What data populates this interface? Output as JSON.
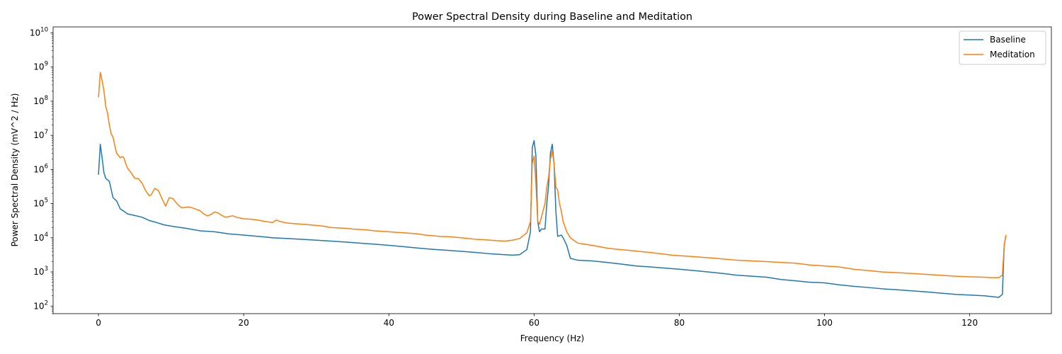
{
  "chart_data": {
    "type": "line",
    "title": "Power Spectral Density during Baseline and Meditation",
    "xlabel": "Frequency (Hz)",
    "ylabel": "Power Spectral Density (mV^2 / Hz)",
    "xlim": [
      -6.25,
      131.25
    ],
    "ylim": [
      60,
      15000000000
    ],
    "yscale": "log",
    "grid": false,
    "legend_position": "upper right",
    "x_ticks": [
      0,
      20,
      40,
      60,
      80,
      100,
      120
    ],
    "y_ticks": [
      100,
      1000,
      10000,
      100000,
      1000000,
      10000000,
      100000000,
      1000000000,
      10000000000
    ],
    "series": [
      {
        "name": "Baseline",
        "color": "#1f77b4",
        "points": [
          [
            0,
            700000
          ],
          [
            0.25,
            5500000
          ],
          [
            0.5,
            2200000
          ],
          [
            0.75,
            800000
          ],
          [
            1,
            550000
          ],
          [
            1.5,
            450000
          ],
          [
            2,
            150000
          ],
          [
            2.5,
            120000
          ],
          [
            3,
            70000
          ],
          [
            3.5,
            60000
          ],
          [
            4,
            50000
          ],
          [
            5,
            45000
          ],
          [
            6,
            40000
          ],
          [
            7,
            32000
          ],
          [
            8,
            28000
          ],
          [
            9,
            24000
          ],
          [
            10,
            22000
          ],
          [
            12,
            19000
          ],
          [
            14,
            16000
          ],
          [
            16,
            15000
          ],
          [
            18,
            13000
          ],
          [
            20,
            12000
          ],
          [
            22,
            11000
          ],
          [
            24,
            10000
          ],
          [
            26,
            9500
          ],
          [
            28,
            9000
          ],
          [
            30,
            8500
          ],
          [
            32,
            8000
          ],
          [
            34,
            7500
          ],
          [
            36,
            7000
          ],
          [
            38,
            6500
          ],
          [
            40,
            6000
          ],
          [
            42,
            5500
          ],
          [
            44,
            5000
          ],
          [
            46,
            4600
          ],
          [
            48,
            4300
          ],
          [
            50,
            4000
          ],
          [
            52,
            3700
          ],
          [
            54,
            3400
          ],
          [
            56,
            3200
          ],
          [
            57,
            3100
          ],
          [
            58,
            3200
          ],
          [
            59,
            4500
          ],
          [
            59.5,
            15000
          ],
          [
            59.75,
            4500000
          ],
          [
            60,
            7000000
          ],
          [
            60.25,
            2500000
          ],
          [
            60.5,
            30000
          ],
          [
            60.75,
            15000
          ],
          [
            61,
            18000
          ],
          [
            61.5,
            18000
          ],
          [
            61.75,
            100000
          ],
          [
            62,
            350000
          ],
          [
            62.25,
            3000000
          ],
          [
            62.5,
            5500000
          ],
          [
            62.75,
            1500000
          ],
          [
            63,
            60000
          ],
          [
            63.25,
            11000
          ],
          [
            63.75,
            12000
          ],
          [
            64,
            10000
          ],
          [
            64.5,
            6000
          ],
          [
            65,
            2500
          ],
          [
            66,
            2200
          ],
          [
            68,
            2100
          ],
          [
            70,
            1900
          ],
          [
            72,
            1700
          ],
          [
            74,
            1500
          ],
          [
            76,
            1400
          ],
          [
            78,
            1300
          ],
          [
            80,
            1200
          ],
          [
            82,
            1100
          ],
          [
            84,
            1000
          ],
          [
            86,
            900
          ],
          [
            88,
            800
          ],
          [
            90,
            750
          ],
          [
            92,
            700
          ],
          [
            94,
            600
          ],
          [
            96,
            550
          ],
          [
            98,
            500
          ],
          [
            100,
            480
          ],
          [
            102,
            420
          ],
          [
            104,
            380
          ],
          [
            106,
            350
          ],
          [
            108,
            320
          ],
          [
            110,
            300
          ],
          [
            112,
            280
          ],
          [
            114,
            260
          ],
          [
            116,
            240
          ],
          [
            118,
            220
          ],
          [
            120,
            210
          ],
          [
            122,
            200
          ],
          [
            123,
            190
          ],
          [
            124,
            180
          ],
          [
            124.5,
            220
          ],
          [
            124.75,
            6000
          ],
          [
            125,
            12000
          ]
        ]
      },
      {
        "name": "Meditation",
        "color": "#ff7f0e",
        "points": [
          [
            0,
            130000000
          ],
          [
            0.25,
            700000000
          ],
          [
            0.5,
            400000000
          ],
          [
            0.75,
            200000000
          ],
          [
            1,
            70000000
          ],
          [
            1.25,
            45000000
          ],
          [
            1.5,
            20000000
          ],
          [
            1.75,
            11000000
          ],
          [
            2,
            9000000
          ],
          [
            2.25,
            5000000
          ],
          [
            2.5,
            3000000
          ],
          [
            3,
            2200000
          ],
          [
            3.25,
            2400000
          ],
          [
            3.5,
            2200000
          ],
          [
            3.75,
            1500000
          ],
          [
            4,
            1100000
          ],
          [
            4.5,
            800000
          ],
          [
            5,
            550000
          ],
          [
            5.5,
            540000
          ],
          [
            6,
            400000
          ],
          [
            6.5,
            240000
          ],
          [
            7,
            170000
          ],
          [
            7.25,
            180000
          ],
          [
            7.75,
            280000
          ],
          [
            8.25,
            240000
          ],
          [
            8.75,
            140000
          ],
          [
            9.25,
            85000
          ],
          [
            9.75,
            150000
          ],
          [
            10.25,
            140000
          ],
          [
            11,
            90000
          ],
          [
            11.5,
            75000
          ],
          [
            12,
            78000
          ],
          [
            12.5,
            80000
          ],
          [
            13,
            74000
          ],
          [
            13.5,
            68000
          ],
          [
            14,
            62000
          ],
          [
            14.5,
            50000
          ],
          [
            15,
            44000
          ],
          [
            15.5,
            48000
          ],
          [
            16,
            57000
          ],
          [
            16.5,
            53000
          ],
          [
            17,
            45000
          ],
          [
            17.5,
            40000
          ],
          [
            18,
            42000
          ],
          [
            18.5,
            44000
          ],
          [
            19,
            40000
          ],
          [
            20,
            36000
          ],
          [
            21,
            35000
          ],
          [
            22,
            33000
          ],
          [
            23,
            30000
          ],
          [
            24,
            28000
          ],
          [
            24.5,
            33000
          ],
          [
            25,
            30000
          ],
          [
            26,
            27000
          ],
          [
            27,
            26000
          ],
          [
            28,
            25000
          ],
          [
            29,
            24000
          ],
          [
            30,
            23000
          ],
          [
            31,
            22000
          ],
          [
            32,
            20000
          ],
          [
            33,
            19500
          ],
          [
            34,
            19000
          ],
          [
            35,
            18000
          ],
          [
            36,
            17500
          ],
          [
            37,
            17000
          ],
          [
            38,
            16000
          ],
          [
            39,
            15500
          ],
          [
            40,
            15000
          ],
          [
            41,
            14500
          ],
          [
            42,
            14000
          ],
          [
            43,
            13500
          ],
          [
            44,
            13000
          ],
          [
            45,
            12000
          ],
          [
            46,
            11500
          ],
          [
            47,
            11000
          ],
          [
            48,
            10800
          ],
          [
            49,
            10500
          ],
          [
            50,
            10000
          ],
          [
            51,
            9500
          ],
          [
            52,
            9000
          ],
          [
            53,
            8800
          ],
          [
            54,
            8500
          ],
          [
            55,
            8200
          ],
          [
            56,
            8000
          ],
          [
            57,
            8500
          ],
          [
            58,
            9500
          ],
          [
            59,
            14000
          ],
          [
            59.5,
            30000
          ],
          [
            59.75,
            1500000
          ],
          [
            60,
            2500000
          ],
          [
            60.25,
            400000
          ],
          [
            60.5,
            30000
          ],
          [
            60.75,
            25000
          ],
          [
            61,
            40000
          ],
          [
            61.5,
            100000
          ],
          [
            61.75,
            300000
          ],
          [
            62,
            600000
          ],
          [
            62.25,
            2000000
          ],
          [
            62.5,
            3500000
          ],
          [
            62.75,
            1500000
          ],
          [
            63,
            300000
          ],
          [
            63.25,
            250000
          ],
          [
            63.5,
            100000
          ],
          [
            63.75,
            60000
          ],
          [
            64,
            30000
          ],
          [
            64.5,
            15000
          ],
          [
            65,
            10000
          ],
          [
            66,
            7000
          ],
          [
            67,
            6500
          ],
          [
            68,
            6000
          ],
          [
            69,
            5500
          ],
          [
            70,
            5000
          ],
          [
            71,
            4700
          ],
          [
            72,
            4500
          ],
          [
            73,
            4300
          ],
          [
            74,
            4100
          ],
          [
            75,
            3900
          ],
          [
            76,
            3700
          ],
          [
            77,
            3500
          ],
          [
            78,
            3300
          ],
          [
            79,
            3100
          ],
          [
            80,
            3000
          ],
          [
            82,
            2800
          ],
          [
            84,
            2600
          ],
          [
            86,
            2400
          ],
          [
            88,
            2200
          ],
          [
            90,
            2100
          ],
          [
            92,
            2000
          ],
          [
            94,
            1900
          ],
          [
            96,
            1800
          ],
          [
            98,
            1600
          ],
          [
            100,
            1500
          ],
          [
            102,
            1400
          ],
          [
            104,
            1200
          ],
          [
            106,
            1100
          ],
          [
            108,
            1000
          ],
          [
            110,
            950
          ],
          [
            112,
            900
          ],
          [
            114,
            850
          ],
          [
            116,
            800
          ],
          [
            118,
            750
          ],
          [
            120,
            720
          ],
          [
            122,
            700
          ],
          [
            123,
            680
          ],
          [
            124,
            680
          ],
          [
            124.5,
            800
          ],
          [
            124.75,
            6000
          ],
          [
            125,
            12000
          ]
        ]
      }
    ]
  }
}
